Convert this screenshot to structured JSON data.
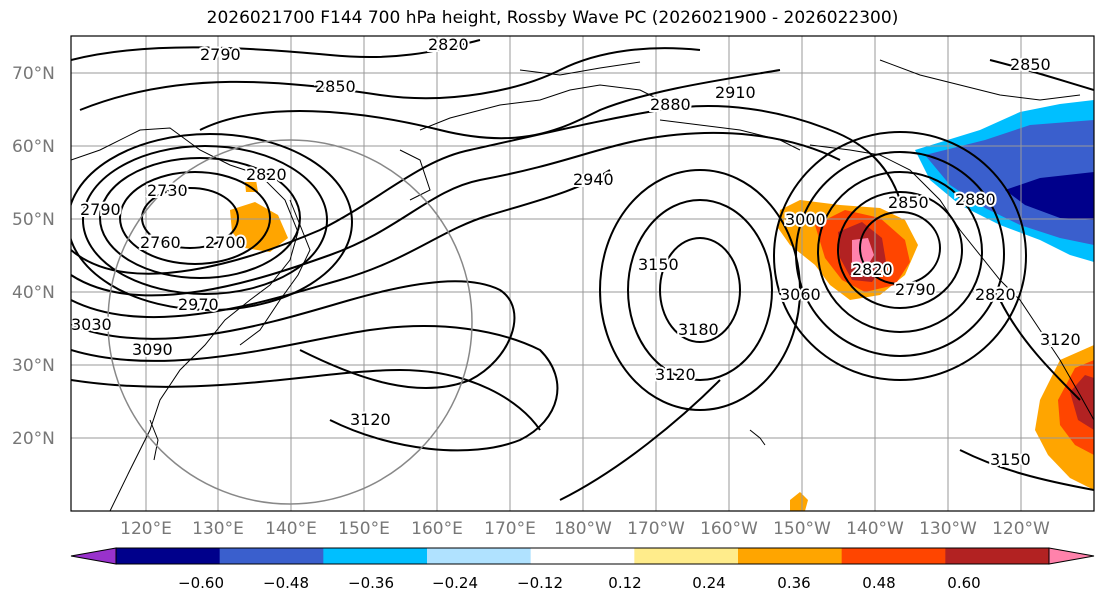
{
  "title": "2026021700 F144 700 hPa height, Rossby Wave PC (2026021900 - 2026022300)",
  "lat_labels": [
    "70°N",
    "60°N",
    "50°N",
    "40°N",
    "30°N",
    "20°N"
  ],
  "lon_labels": [
    "120°E",
    "130°E",
    "140°E",
    "150°E",
    "160°E",
    "170°E",
    "180°W",
    "170°W",
    "160°W",
    "150°W",
    "140°W",
    "130°W",
    "120°W"
  ],
  "contour_labels": [
    "2790",
    "2820",
    "2850",
    "2880",
    "2910",
    "2940",
    "2730",
    "2790",
    "2760",
    "2700",
    "2820",
    "2970",
    "3030",
    "3090",
    "3120",
    "3150",
    "3180",
    "3120",
    "3060",
    "3000",
    "2820",
    "2850",
    "2790",
    "2880",
    "2850",
    "2820",
    "3120",
    "3150"
  ],
  "colorbar": {
    "ticks": [
      "−0.60",
      "−0.48",
      "−0.36",
      "−0.24",
      "−0.12",
      "0.12",
      "0.24",
      "0.36",
      "0.48",
      "0.60"
    ],
    "colors": [
      "#9932cc",
      "#00008b",
      "#3a5fcd",
      "#00bfff",
      "#b0e2ff",
      "#ffffff",
      "#ffec8b",
      "#ffa500",
      "#ff4500",
      "#b22222",
      "#ff82ab"
    ]
  }
}
